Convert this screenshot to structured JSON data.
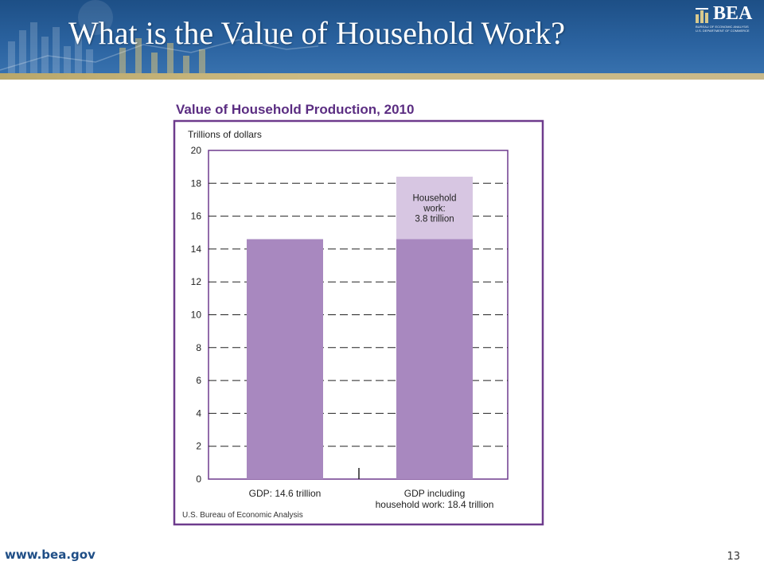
{
  "slide": {
    "title": "What is the Value of Household Work?",
    "footer_url": "www.bea.gov",
    "page_number": "13"
  },
  "logo": {
    "text": "BEA",
    "sub1": "BUREAU OF ECONOMIC ANALYSIS",
    "sub2": "U.S. DEPARTMENT OF COMMERCE"
  },
  "chart_data": {
    "type": "bar",
    "stacked": true,
    "title": "Value of Household Production, 2010",
    "ylabel": "Trillions of dollars",
    "xlabel": "",
    "ylim": [
      0,
      20
    ],
    "yticks": [
      0,
      2,
      4,
      6,
      8,
      10,
      12,
      14,
      16,
      18,
      20
    ],
    "grid": true,
    "categories": [
      [
        "GDP: 14.6 trillion"
      ],
      [
        "GDP including",
        "household work: 18.4 trillion"
      ]
    ],
    "series": [
      {
        "values": [
          14.6,
          14.6
        ],
        "color": "#a888bf"
      },
      {
        "values": [
          0,
          3.8
        ],
        "color": "#d7c6e2"
      }
    ],
    "annotation": {
      "lines": [
        "Household",
        "work:",
        "3.8 trillion"
      ]
    },
    "source": "U.S. Bureau of Economic Analysis",
    "colors": {
      "title": "#5b2d82",
      "border": "#6e3b8d"
    }
  }
}
